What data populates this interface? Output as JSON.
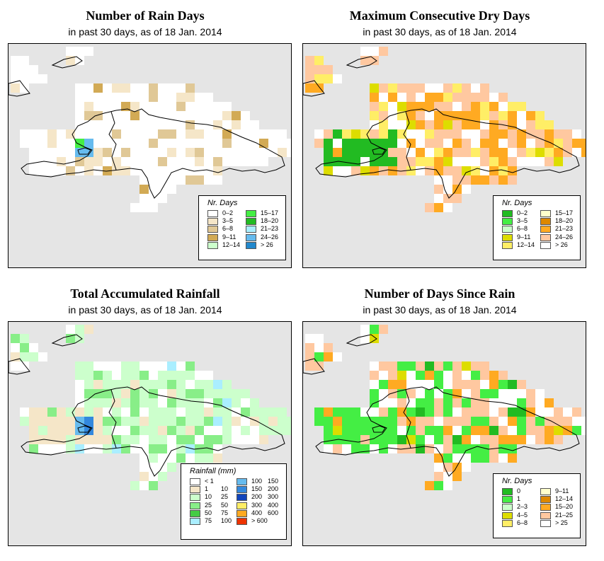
{
  "panels": [
    {
      "id": "rain-days",
      "title": "Number of Rain Days",
      "subtitle": "in past 30 days, as of  18 Jan. 2014",
      "legend": {
        "title": "Nr. Days",
        "items": [
          {
            "label": "0–2",
            "color": "#ffffff"
          },
          {
            "label": "3–5",
            "color": "#f5e6c8"
          },
          {
            "label": "6–8",
            "color": "#e0c896"
          },
          {
            "label": "9–11",
            "color": "#d2aa55"
          },
          {
            "label": "12–14",
            "color": "#ccffcc"
          },
          {
            "label": "15–17",
            "color": "#44ee44"
          },
          {
            "label": "18–20",
            "color": "#22bb22"
          },
          {
            "label": "21–23",
            "color": "#aaeeff"
          },
          {
            "label": "24–26",
            "color": "#66bbee"
          },
          {
            "label": "> 26",
            "color": "#2288cc"
          }
        ]
      },
      "map_colors": {
        "base": "#ffffff",
        "a": "#f5e6c8",
        "b": "#e0c896",
        "c": "#d2aa55",
        "d": "#44ee44",
        "e": "#66bbee",
        "f": "#2288cc"
      }
    },
    {
      "id": "max-dry-days",
      "title": "Maximum Consecutive Dry Days",
      "subtitle": "in past 30 days, as of  18 Jan. 2014",
      "legend": {
        "title": "Nr. Days",
        "items": [
          {
            "label": "0–2",
            "color": "#22bb22"
          },
          {
            "label": "3–5",
            "color": "#44ee44"
          },
          {
            "label": "6–8",
            "color": "#ccffcc"
          },
          {
            "label": "9–11",
            "color": "#dddd00"
          },
          {
            "label": "12–14",
            "color": "#ffee66"
          },
          {
            "label": "15–17",
            "color": "#ffffcc"
          },
          {
            "label": "18–20",
            "color": "#dd8800"
          },
          {
            "label": "21–23",
            "color": "#ffaa22"
          },
          {
            "label": "24–26",
            "color": "#ffc8a0"
          },
          {
            "label": "> 26",
            "color": "#ffffff"
          }
        ]
      },
      "map_colors": {
        "base": "#ffffff",
        "a": "#ffc8a0",
        "b": "#ffaa22",
        "c": "#ffee66",
        "d": "#dddd00",
        "e": "#22bb22",
        "f": "#ccffcc"
      }
    },
    {
      "id": "total-rainfall",
      "title": "Total Accumulated Rainfall",
      "subtitle": "in past 30 days, as of  18 Jan. 2014",
      "legend": {
        "title": "Rainfall (mm)",
        "items": [
          {
            "label": "< 1",
            "color": "#ffffff"
          },
          {
            "label": "1",
            "label2": "10",
            "color": "#f5e6c8"
          },
          {
            "label": "10",
            "label2": "25",
            "color": "#ccffcc"
          },
          {
            "label": "25",
            "label2": "50",
            "color": "#88ee88"
          },
          {
            "label": "50",
            "label2": "75",
            "color": "#44cc44"
          },
          {
            "label": "75",
            "label2": "100",
            "color": "#aaeeff"
          },
          {
            "label": "100",
            "label2": "150",
            "color": "#66bbee"
          },
          {
            "label": "150",
            "label2": "200",
            "color": "#3388dd"
          },
          {
            "label": "200",
            "label2": "300",
            "color": "#1144bb"
          },
          {
            "label": "300",
            "label2": "400",
            "color": "#ffee66"
          },
          {
            "label": "400",
            "label2": "600",
            "color": "#ffaa22"
          },
          {
            "label": "> 600",
            "color": "#ee3300"
          }
        ]
      },
      "map_colors": {
        "base": "#ffffff",
        "a": "#f5e6c8",
        "b": "#ccffcc",
        "c": "#88ee88",
        "d": "#aaeeff",
        "e": "#66bbee",
        "f": "#3388dd"
      }
    },
    {
      "id": "days-since-rain",
      "title": "Number of Days Since Rain",
      "subtitle": "in past 30 days, as of  18 Jan. 2014",
      "legend": {
        "title": "Nr. Days",
        "items": [
          {
            "label": "0",
            "color": "#22bb22"
          },
          {
            "label": "1",
            "color": "#44ee44"
          },
          {
            "label": "2–3",
            "color": "#ccffcc"
          },
          {
            "label": "4–5",
            "color": "#dddd00"
          },
          {
            "label": "6–8",
            "color": "#ffee66"
          },
          {
            "label": "9–11",
            "color": "#ffffcc"
          },
          {
            "label": "12–14",
            "color": "#dd8800"
          },
          {
            "label": "15–20",
            "color": "#ffaa22"
          },
          {
            "label": "21–25",
            "color": "#ffc8a0"
          },
          {
            "label": "> 25",
            "color": "#ffffff"
          }
        ]
      },
      "map_colors": {
        "base": "#ffffff",
        "a": "#ffc8a0",
        "b": "#ffaa22",
        "c": "#44ee44",
        "d": "#22bb22",
        "e": "#dddd00",
        "f": "#dd8800"
      }
    }
  ]
}
